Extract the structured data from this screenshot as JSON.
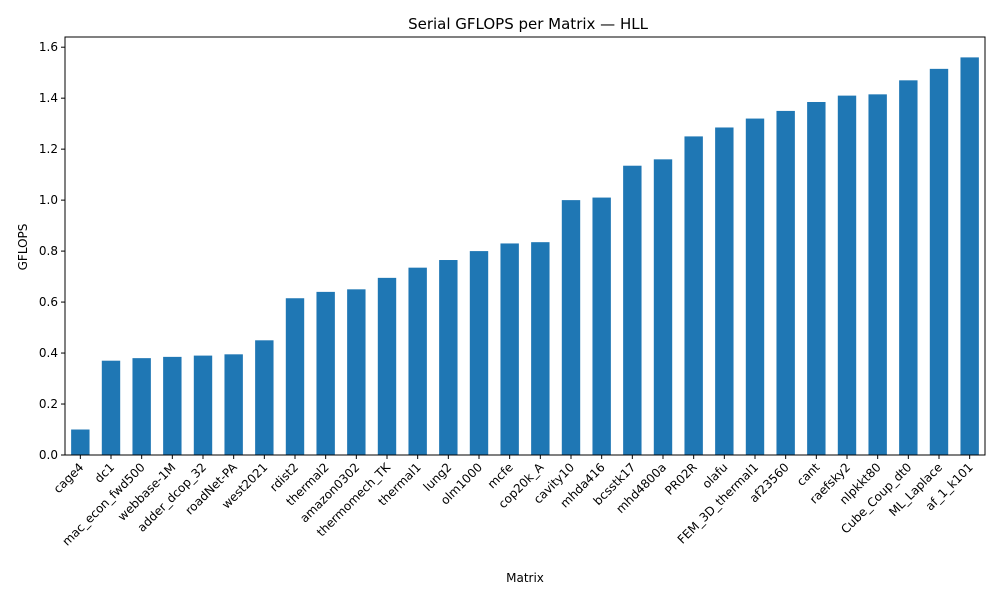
{
  "chart_data": {
    "type": "bar",
    "title": "Serial GFLOPS per Matrix — HLL",
    "xlabel": "Matrix",
    "ylabel": "GFLOPS",
    "ylim": [
      0,
      1.64
    ],
    "yticks": [
      0.0,
      0.2,
      0.4,
      0.6,
      0.8,
      1.0,
      1.2,
      1.4,
      1.6
    ],
    "grid": false,
    "bar_color": "#1f77b4",
    "categories": [
      "cage4",
      "dc1",
      "mac_econ_fwd500",
      "webbase-1M",
      "adder_dcop_32",
      "roadNet-PA",
      "west2021",
      "rdist2",
      "thermal2",
      "amazon0302",
      "thermomech_TK",
      "thermal1",
      "lung2",
      "olm1000",
      "mcfe",
      "cop20k_A",
      "cavity10",
      "mhda416",
      "bcsstk17",
      "mhd4800a",
      "PR02R",
      "olafu",
      "FEM_3D_thermal1",
      "af23560",
      "cant",
      "raefsky2",
      "nlpkkt80",
      "Cube_Coup_dt0",
      "ML_Laplace",
      "af_1_k101"
    ],
    "values": [
      0.1,
      0.37,
      0.38,
      0.385,
      0.39,
      0.395,
      0.45,
      0.615,
      0.64,
      0.65,
      0.695,
      0.735,
      0.765,
      0.8,
      0.83,
      0.835,
      1.0,
      1.01,
      1.135,
      1.16,
      1.25,
      1.285,
      1.32,
      1.35,
      1.385,
      1.41,
      1.415,
      1.47,
      1.515,
      1.56
    ]
  }
}
